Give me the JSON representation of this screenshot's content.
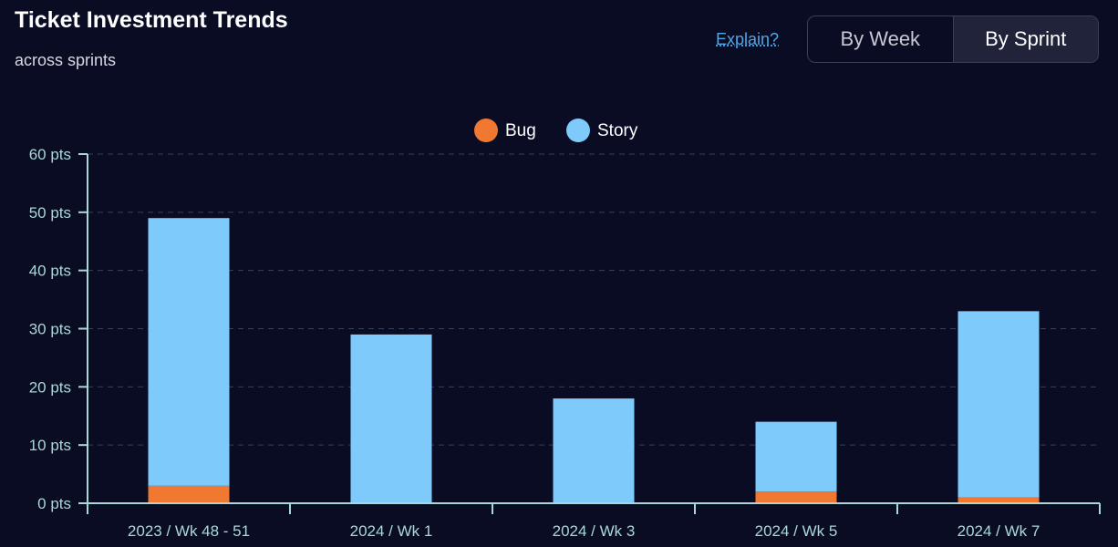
{
  "header": {
    "title": "Ticket Investment Trends",
    "subtitle": "across sprints",
    "explain_label": "Explain?",
    "toggle": [
      "By Week",
      "By Sprint"
    ],
    "active_toggle": "By Sprint"
  },
  "chart_data": {
    "type": "bar",
    "stacked": true,
    "categories": [
      "2023 / Wk 48 - 51",
      "2024 / Wk 1",
      "2024 / Wk 3",
      "2024 / Wk 5",
      "2024 / Wk 7"
    ],
    "series": [
      {
        "name": "Bug",
        "color": "#f07830",
        "values": [
          3,
          0,
          0,
          2,
          1
        ]
      },
      {
        "name": "Story",
        "color": "#7ecbfb",
        "values": [
          46,
          29,
          18,
          12,
          32
        ]
      }
    ],
    "yticks": [
      "0 pts",
      "10 pts",
      "20 pts",
      "30 pts",
      "40 pts",
      "50 pts",
      "60 pts"
    ],
    "ylim": [
      0,
      60
    ],
    "grid": true,
    "legend": "top-center"
  }
}
